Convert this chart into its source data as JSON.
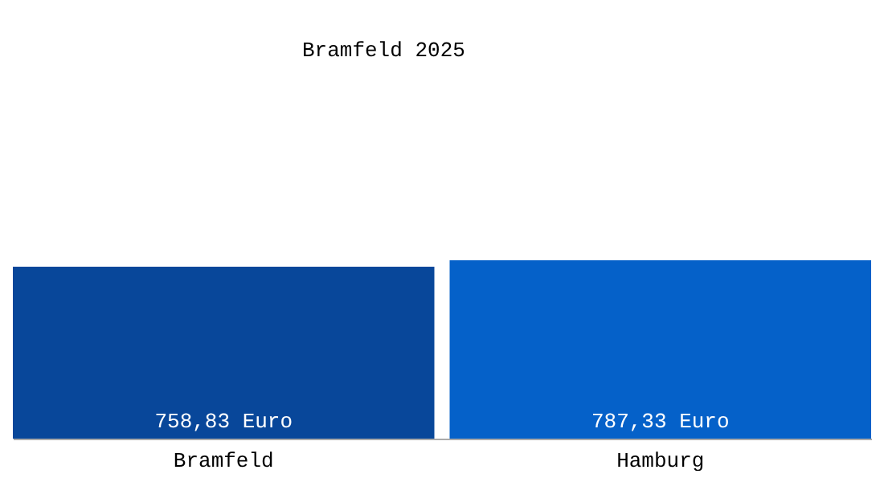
{
  "chart_data": {
    "type": "bar",
    "title": "Bramfeld 2025",
    "categories": [
      "Bramfeld",
      "Hamburg"
    ],
    "values": [
      758.83,
      787.33
    ],
    "colors": [
      "#08479a",
      "#0561c9"
    ],
    "value_labels": [
      "758,83 Euro",
      "787,33 Euro"
    ]
  }
}
